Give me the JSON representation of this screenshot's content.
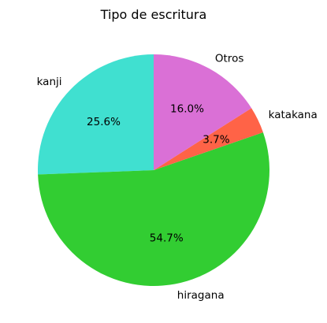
{
  "chart_data": {
    "type": "pie",
    "title": "Tipo de escritura",
    "start_angle_deg": 90,
    "direction": "counterclockwise",
    "slices": [
      {
        "label": "kanji",
        "value": 25.6,
        "pct_text": "25.6%",
        "color": "#40e0d0"
      },
      {
        "label": "hiragana",
        "value": 54.7,
        "pct_text": "54.7%",
        "color": "#32cd32"
      },
      {
        "label": "katakana",
        "value": 3.7,
        "pct_text": "3.7%",
        "color": "#ff6347"
      },
      {
        "label": "Otros",
        "value": 16.0,
        "pct_text": "16.0%",
        "color": "#da70d6"
      }
    ]
  }
}
